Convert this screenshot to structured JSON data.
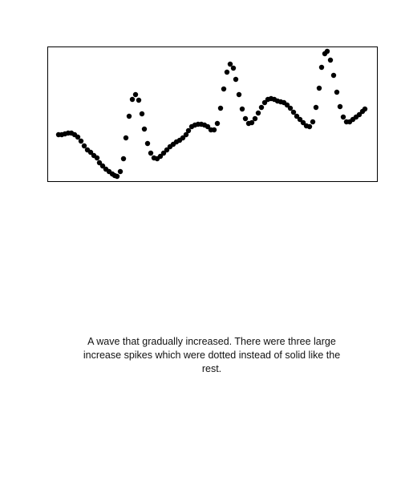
{
  "chart_data": {
    "type": "scatter",
    "color": "#000000",
    "xlim": [
      0,
      411
    ],
    "ylim": [
      0,
      168
    ],
    "x": [
      14,
      18,
      22,
      26,
      30,
      34,
      38,
      42,
      46,
      50,
      54,
      58,
      62,
      65,
      69,
      73,
      77,
      81,
      84,
      87,
      91,
      95,
      98,
      102,
      106,
      110,
      114,
      118,
      121,
      125,
      129,
      133,
      137,
      141,
      145,
      149,
      153,
      157,
      161,
      165,
      169,
      173,
      176,
      180,
      184,
      188,
      192,
      196,
      200,
      204,
      208,
      212,
      216,
      220,
      224,
      228,
      232,
      235,
      239,
      243,
      247,
      251,
      255,
      259,
      263,
      267,
      271,
      275,
      279,
      283,
      287,
      291,
      295,
      299,
      303,
      307,
      311,
      315,
      319,
      323,
      327,
      331,
      335,
      339,
      342,
      346,
      349,
      353,
      357,
      361,
      365,
      369,
      373,
      377,
      381,
      385,
      389,
      393,
      396
    ],
    "values": [
      58,
      58,
      59,
      60,
      60,
      58,
      55,
      50,
      44,
      39,
      36,
      32,
      29,
      23,
      19,
      15,
      12,
      9,
      7,
      6,
      12,
      28,
      54,
      81,
      102,
      108,
      101,
      84,
      65,
      47,
      35,
      29,
      28,
      31,
      35,
      39,
      43,
      46,
      49,
      51,
      54,
      58,
      63,
      68,
      70,
      71,
      71,
      70,
      68,
      64,
      64,
      72,
      91,
      115,
      136,
      146,
      141,
      127,
      108,
      90,
      78,
      72,
      73,
      78,
      85,
      92,
      98,
      102,
      103,
      102,
      100,
      99,
      98,
      95,
      91,
      86,
      81,
      77,
      73,
      69,
      68,
      74,
      92,
      116,
      142,
      159,
      162,
      151,
      132,
      111,
      93,
      80,
      74,
      74,
      77,
      80,
      83,
      87,
      90
    ]
  },
  "caption": "A wave that gradually increased. There were three large increase spikes which were dotted instead of solid like the rest."
}
